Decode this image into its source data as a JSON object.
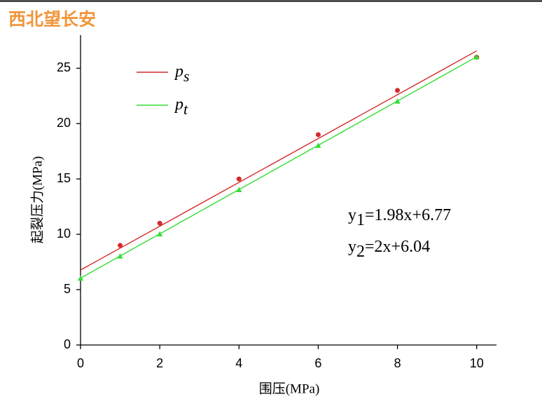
{
  "header": {
    "title": "西北望长安"
  },
  "chart_data": {
    "type": "scatter",
    "xlabel": "围压(MPa)",
    "ylabel": "起裂压力(MPa)",
    "xlim": [
      0,
      10.5
    ],
    "ylim": [
      0,
      28
    ],
    "xticks": [
      0,
      2,
      4,
      6,
      8,
      10
    ],
    "yticks": [
      0,
      5,
      10,
      15,
      20,
      25
    ],
    "series": [
      {
        "name": "p",
        "subscript": "s",
        "color": "#d42a2a",
        "marker": "circle",
        "x": [
          1,
          2,
          4,
          6,
          8,
          10
        ],
        "values": [
          9,
          11,
          15,
          19,
          23,
          26
        ],
        "fit": {
          "x": [
            0,
            10
          ],
          "values": [
            6.77,
            26.57
          ]
        }
      },
      {
        "name": "p",
        "subscript": "t",
        "color": "#33dd33",
        "marker": "triangle",
        "x": [
          0,
          1,
          2,
          4,
          6,
          8,
          10
        ],
        "values": [
          6,
          8,
          10,
          14,
          18,
          22,
          26
        ],
        "fit": {
          "x": [
            0,
            10
          ],
          "values": [
            6.04,
            26.04
          ]
        }
      }
    ],
    "annotations": [
      {
        "var": "y",
        "sub": "1",
        "rhs": "=1.98x+6.77"
      },
      {
        "var": "y",
        "sub": "2",
        "rhs": "=2x+6.04"
      }
    ]
  }
}
